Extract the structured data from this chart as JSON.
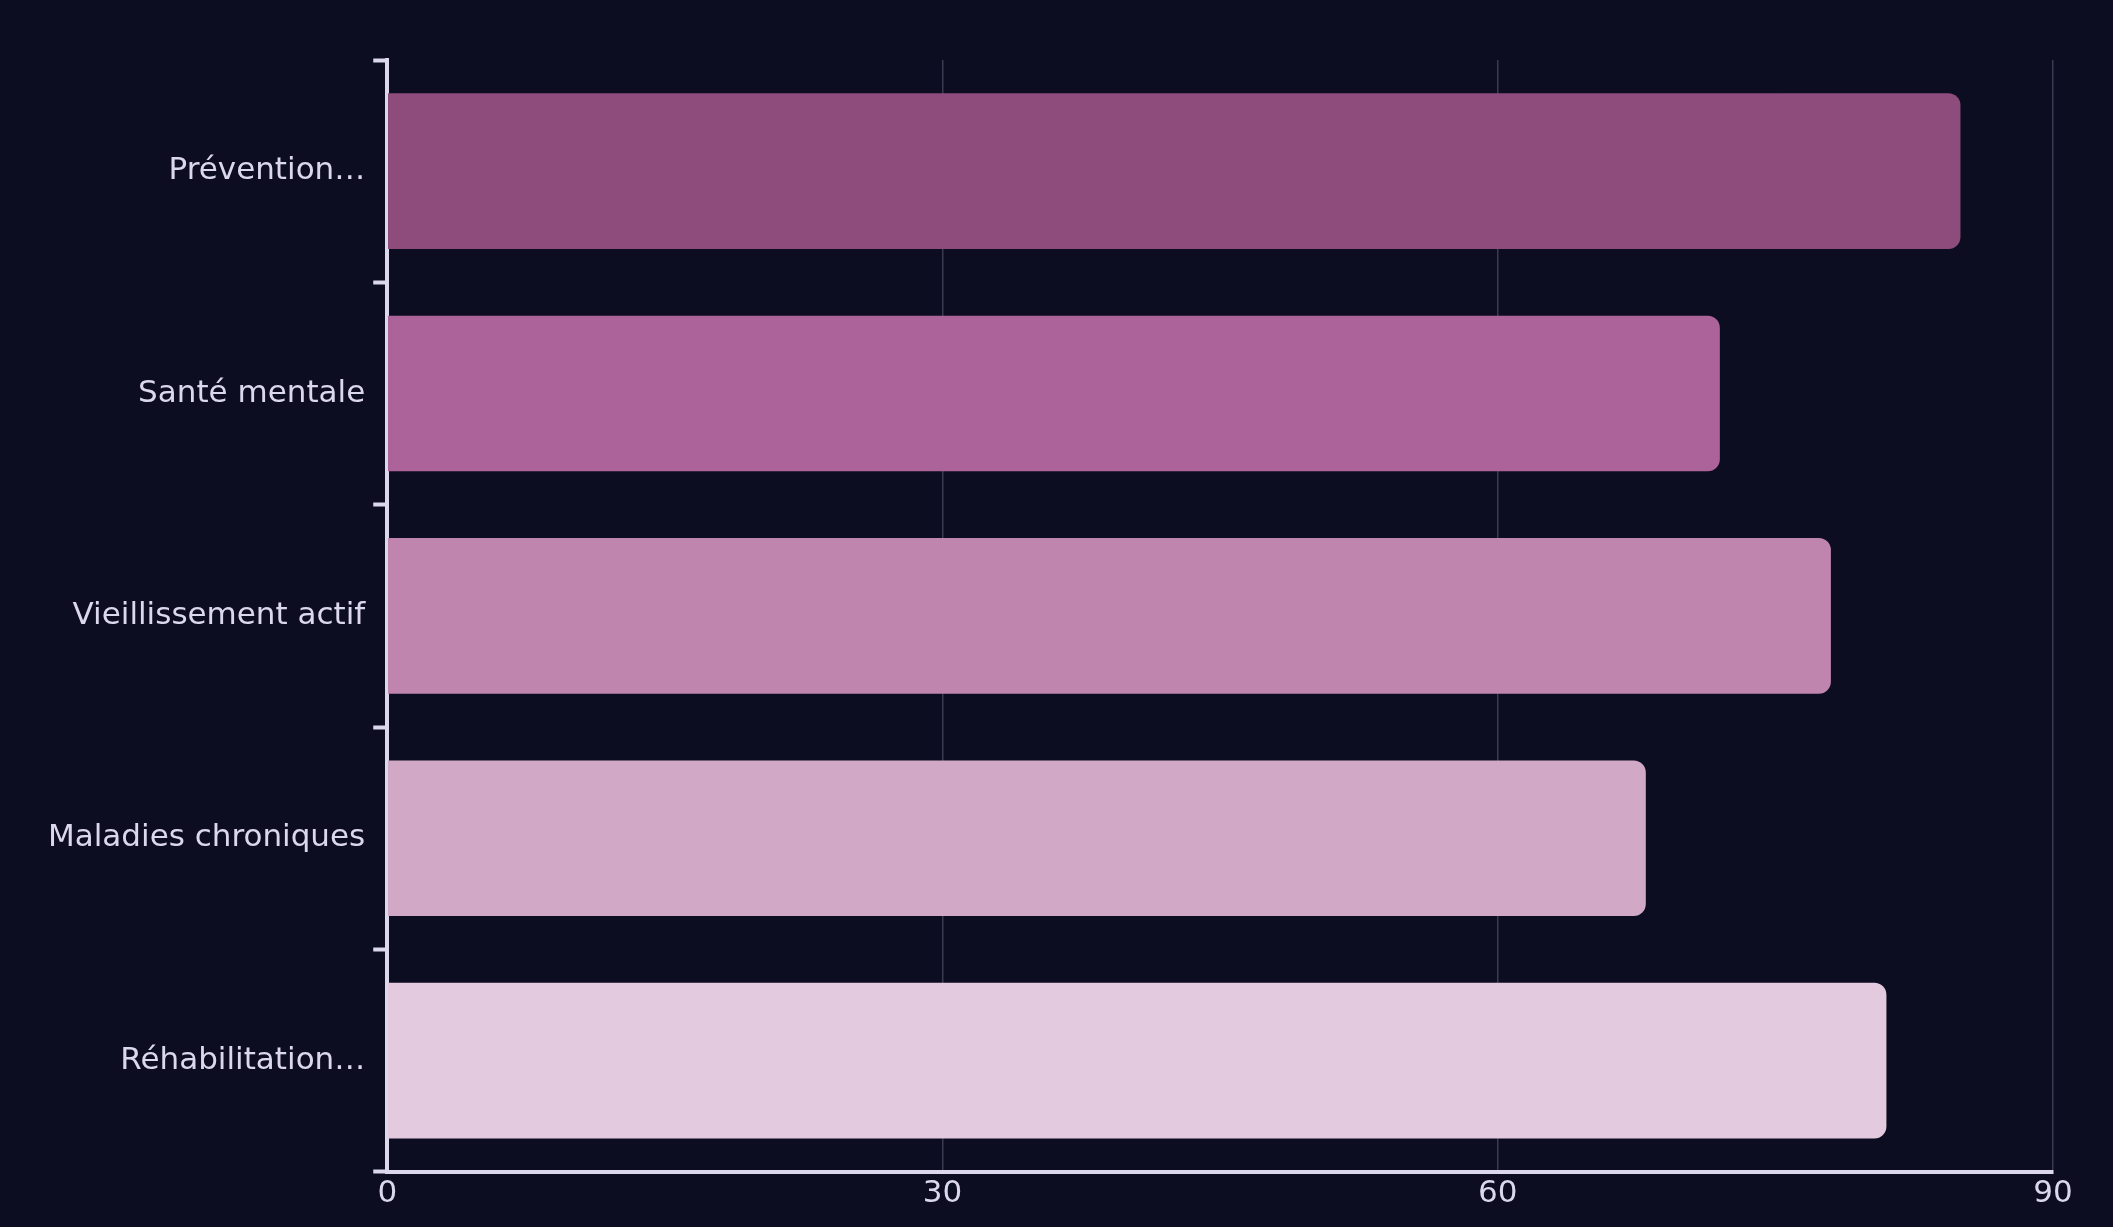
{
  "chart_data": {
    "type": "bar",
    "orientation": "horizontal",
    "categories": [
      "Prévention…",
      "Santé mentale",
      "Vieillissement actif",
      "Maladies chroniques",
      "Réhabilitation…"
    ],
    "values": [
      85,
      72,
      78,
      68,
      81
    ],
    "colors": [
      "#8e4c7c",
      "#ab6399",
      "#bf85ae",
      "#d1a8c6",
      "#e4cade"
    ],
    "xlim": [
      0,
      90
    ],
    "xticks": [
      0,
      30,
      60,
      90
    ],
    "grid": "x",
    "legend": false
  }
}
